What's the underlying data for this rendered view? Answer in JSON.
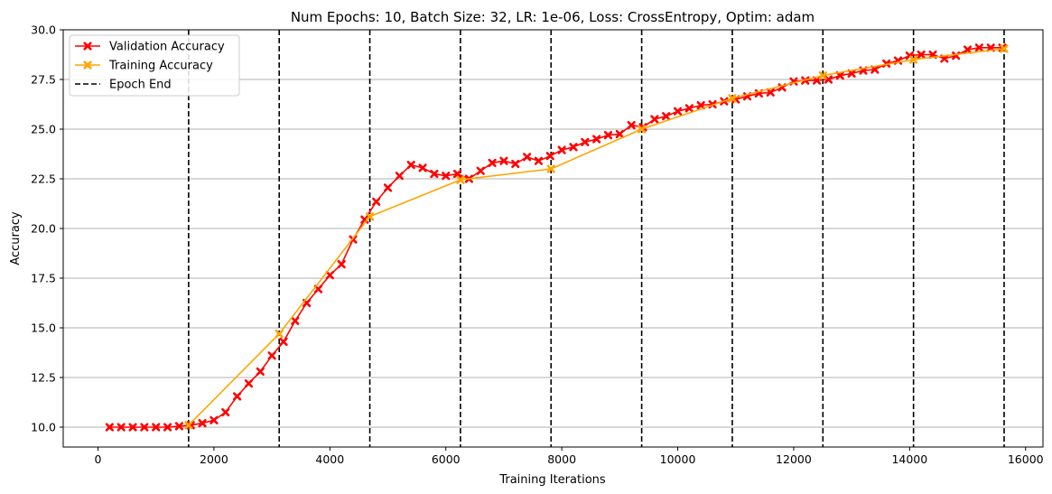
{
  "chart_data": {
    "type": "line",
    "title": "Num Epochs: 10, Batch Size: 32, LR: 1e-06, Loss: CrossEntropy, Optim: adam",
    "xlabel": "Training Iterations",
    "ylabel": "Accuracy",
    "xlim": [
      -600,
      16300
    ],
    "ylim": [
      9.0,
      30.0
    ],
    "xticks": [
      0,
      2000,
      4000,
      6000,
      8000,
      10000,
      12000,
      14000,
      16000
    ],
    "xtick_labels": [
      "0",
      "2000",
      "4000",
      "6000",
      "8000",
      "10000",
      "12000",
      "14000",
      "16000"
    ],
    "yticks": [
      10.0,
      12.5,
      15.0,
      17.5,
      20.0,
      22.5,
      25.0,
      27.5,
      30.0
    ],
    "ytick_labels": [
      "10.0",
      "12.5",
      "15.0",
      "17.5",
      "20.0",
      "22.5",
      "25.0",
      "27.5",
      "30.0"
    ],
    "grid": "horizontal",
    "legend_position": "top-left",
    "series": [
      {
        "name": "Validation Accuracy",
        "color": "#ff0000",
        "marker": "x",
        "x": [
          200,
          400,
          600,
          800,
          1000,
          1200,
          1400,
          1600,
          1800,
          2000,
          2200,
          2400,
          2600,
          2800,
          3000,
          3200,
          3400,
          3600,
          3800,
          4000,
          4200,
          4400,
          4600,
          4800,
          5000,
          5200,
          5400,
          5600,
          5800,
          6000,
          6200,
          6400,
          6600,
          6800,
          7000,
          7200,
          7400,
          7600,
          7800,
          8000,
          8200,
          8400,
          8600,
          8800,
          9000,
          9200,
          9400,
          9600,
          9800,
          10000,
          10200,
          10400,
          10600,
          10800,
          11000,
          11200,
          11400,
          11600,
          11800,
          12000,
          12200,
          12400,
          12600,
          12800,
          13000,
          13200,
          13400,
          13600,
          13800,
          14000,
          14200,
          14400,
          14600,
          14800,
          15000,
          15200,
          15400,
          15600
        ],
        "y": [
          10.0,
          10.0,
          10.0,
          10.0,
          10.0,
          10.0,
          10.05,
          10.1,
          10.2,
          10.35,
          10.75,
          11.55,
          12.2,
          12.8,
          13.6,
          14.3,
          15.35,
          16.25,
          16.95,
          17.65,
          18.2,
          19.45,
          20.45,
          21.35,
          22.05,
          22.65,
          23.2,
          23.05,
          22.75,
          22.65,
          22.75,
          22.5,
          22.9,
          23.3,
          23.4,
          23.25,
          23.6,
          23.4,
          23.65,
          23.95,
          24.1,
          24.35,
          24.5,
          24.7,
          24.75,
          25.2,
          25.1,
          25.5,
          25.65,
          25.9,
          26.05,
          26.2,
          26.25,
          26.4,
          26.5,
          26.65,
          26.8,
          26.85,
          27.1,
          27.4,
          27.45,
          27.45,
          27.5,
          27.7,
          27.8,
          27.95,
          28.0,
          28.3,
          28.45,
          28.7,
          28.75,
          28.75,
          28.55,
          28.7,
          29.0,
          29.1,
          29.1,
          29.1
        ]
      },
      {
        "name": "Training Accuracy",
        "color": "#ffa500",
        "marker": "x",
        "x": [
          1563,
          3126,
          4689,
          6252,
          7815,
          9378,
          10941,
          12504,
          14067,
          15630
        ],
        "y": [
          10.1,
          14.7,
          20.6,
          22.45,
          23.0,
          25.0,
          26.55,
          27.7,
          28.5,
          29.05
        ]
      }
    ],
    "vlines": {
      "name": "Epoch End",
      "color": "#000000",
      "style": "dashed",
      "x": [
        1563,
        3126,
        4689,
        6252,
        7815,
        9378,
        10941,
        12504,
        14067,
        15630
      ]
    }
  }
}
